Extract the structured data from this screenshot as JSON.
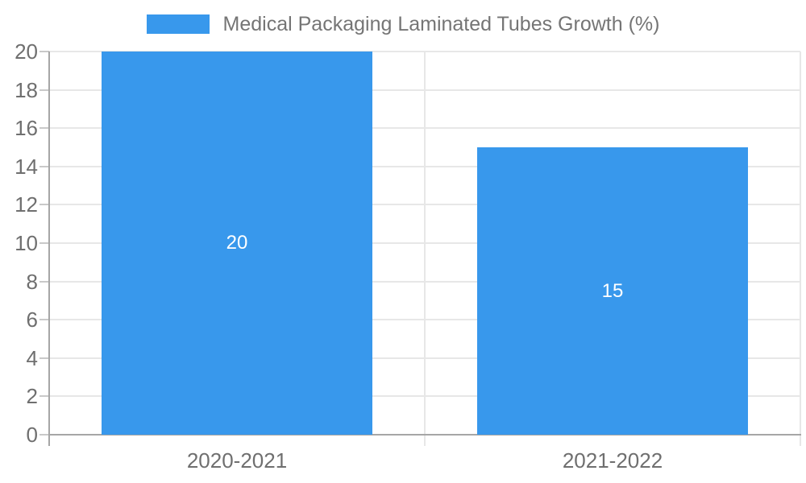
{
  "chart_data": {
    "type": "bar",
    "legend": {
      "label": "Medical Packaging Laminated Tubes Growth (%)",
      "position": "top-center"
    },
    "categories": [
      "2020-2021",
      "2021-2022"
    ],
    "series": [
      {
        "name": "Medical Packaging Laminated Tubes Growth (%)",
        "values": [
          20,
          15
        ]
      }
    ],
    "value_labels": [
      "20",
      "15"
    ],
    "ylim": [
      0,
      20
    ],
    "yticks": [
      0,
      2,
      4,
      6,
      8,
      10,
      12,
      14,
      16,
      18,
      20
    ],
    "grid": true,
    "layout_hints": {
      "legend_position": "top",
      "value_labels_inside_bars": true,
      "vertical_category_divider": true
    },
    "colors": {
      "bar": "#3898ec",
      "value_label": "#ffffff",
      "axis_line": "#a6a6a6",
      "gridline": "#e7e7e7",
      "minor_tick": "#c9c9c9",
      "axis_text": "#6f6f6f",
      "legend_text": "#757575",
      "background": "#ffffff"
    }
  }
}
